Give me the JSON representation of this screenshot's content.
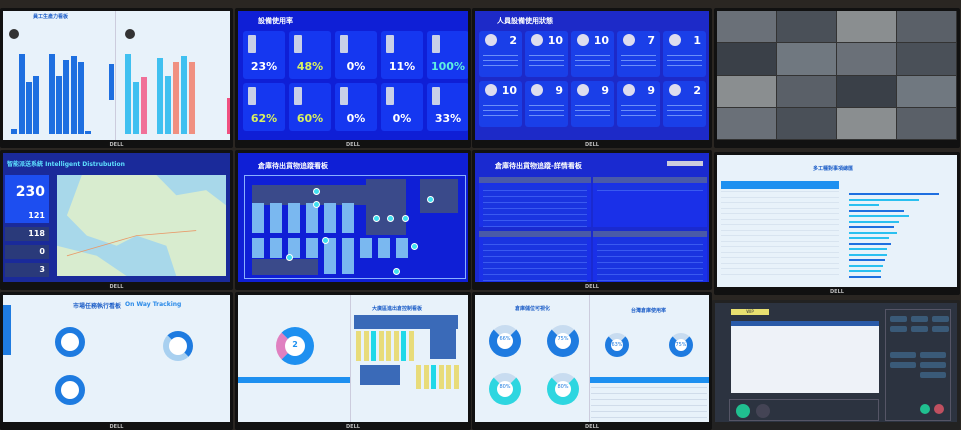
{
  "bezel_logo": "DELL",
  "screen_equipment": {
    "title": "設備使用率",
    "percentages": [
      "23%",
      "48%",
      "0%",
      "11%",
      "100%",
      "62%",
      "60%",
      "0%",
      "0%",
      "33%"
    ],
    "highlight_color": "#d8f060"
  },
  "screen_staff": {
    "title": "人員設備使用狀態",
    "counts": [
      "2",
      "10",
      "10",
      "7",
      "1",
      "10",
      "9",
      "9",
      "9",
      "2"
    ]
  },
  "screen_distribution": {
    "title": "智能派送系統 Intelligent Distrubution",
    "kpis": [
      "230",
      "121",
      "118",
      "0",
      "3"
    ]
  },
  "screen_warehouse_map": {
    "title": "倉庫待出貨物追蹤看板"
  },
  "screen_warehouse_detail": {
    "title": "倉庫待出貨物追蹤-詳情看板"
  },
  "screen_productivity": {
    "title": "員工生產力看板"
  },
  "screen_on_way": {
    "title": "市場任務執行看板",
    "subtitle": "On Way Tracking"
  },
  "screen_location": {
    "title": "大廣區進出倉控制看板",
    "donut_value": "2"
  },
  "screen_storage": {
    "title": "倉庫儲位可視化",
    "title2": "台灣倉庫使用率",
    "donut_labels": [
      "66%",
      "75%",
      "80%",
      "80%",
      "63%",
      "75%"
    ]
  },
  "screen_stats": {
    "title": "多工種對事項總匯"
  },
  "screen_control": {
    "tab_label": "WIP"
  },
  "colors": {
    "accent_blue": "#1e7be0",
    "bright_blue": "#0f1fd6",
    "cyan": "#2ed6e0",
    "pink": "#f07090"
  }
}
